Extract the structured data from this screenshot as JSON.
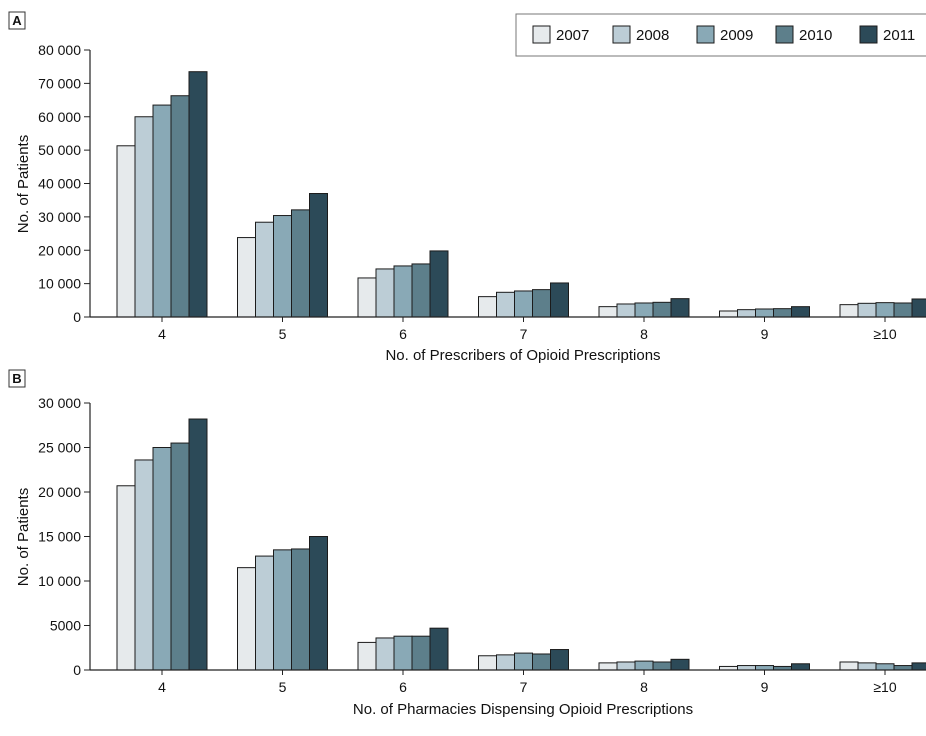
{
  "colors": {
    "2007": "#e6eaec",
    "2008": "#bccdd6",
    "2009": "#89a9b6",
    "2010": "#5d7f8b",
    "2011": "#2c4a58",
    "bar_stroke": "#1b1b1b"
  },
  "legend": {
    "placement": "top-right",
    "entries": [
      "2007",
      "2008",
      "2009",
      "2010",
      "2011"
    ]
  },
  "chart_data": [
    {
      "panel": "A",
      "type": "bar",
      "xlabel": "No. of Prescribers of Opioid Prescriptions",
      "ylabel": "No. of Patients",
      "ylim": [
        0,
        80000
      ],
      "yticks": [
        0,
        10000,
        20000,
        30000,
        40000,
        50000,
        60000,
        70000,
        80000
      ],
      "ytick_labels": [
        "0",
        "10 000",
        "20 000",
        "30 000",
        "40 000",
        "50 000",
        "60 000",
        "70 000",
        "80 000"
      ],
      "grid": false,
      "categories": [
        "4",
        "5",
        "6",
        "7",
        "8",
        "9",
        "≥10"
      ],
      "series": [
        {
          "name": "2007",
          "values": [
            51300,
            23800,
            11700,
            6100,
            3100,
            1800,
            3700
          ]
        },
        {
          "name": "2008",
          "values": [
            60000,
            28400,
            14400,
            7400,
            3900,
            2200,
            4100
          ]
        },
        {
          "name": "2009",
          "values": [
            63500,
            30400,
            15300,
            7800,
            4200,
            2400,
            4300
          ]
        },
        {
          "name": "2010",
          "values": [
            66300,
            32100,
            15900,
            8200,
            4400,
            2500,
            4200
          ]
        },
        {
          "name": "2011",
          "values": [
            73500,
            37000,
            19800,
            10200,
            5500,
            3100,
            5400
          ]
        }
      ]
    },
    {
      "panel": "B",
      "type": "bar",
      "xlabel": "No. of Pharmacies Dispensing Opioid Prescriptions",
      "ylabel": "No. of Patients",
      "ylim": [
        0,
        30000
      ],
      "yticks": [
        0,
        5000,
        10000,
        15000,
        20000,
        25000,
        30000
      ],
      "ytick_labels": [
        "0",
        "5000",
        "10 000",
        "15 000",
        "20 000",
        "25 000",
        "30 000"
      ],
      "grid": false,
      "categories": [
        "4",
        "5",
        "6",
        "7",
        "8",
        "9",
        "≥10"
      ],
      "series": [
        {
          "name": "2007",
          "values": [
            20700,
            11500,
            3100,
            1600,
            800,
            400,
            900
          ]
        },
        {
          "name": "2008",
          "values": [
            23600,
            12800,
            3600,
            1700,
            900,
            500,
            800
          ]
        },
        {
          "name": "2009",
          "values": [
            25000,
            13500,
            3800,
            1900,
            1000,
            500,
            700
          ]
        },
        {
          "name": "2010",
          "values": [
            25500,
            13600,
            3800,
            1800,
            900,
            400,
            500
          ]
        },
        {
          "name": "2011",
          "values": [
            28200,
            15000,
            4700,
            2300,
            1200,
            700,
            800
          ]
        }
      ]
    }
  ]
}
